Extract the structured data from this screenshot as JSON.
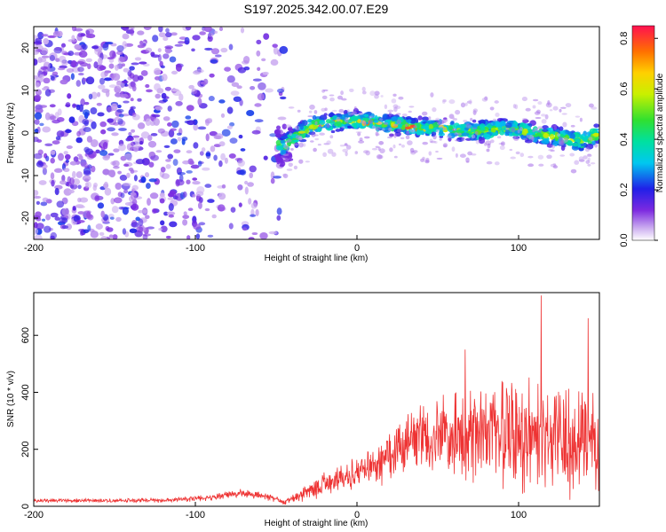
{
  "title": "S197.2025.342.00.07.E29",
  "chart_data": [
    {
      "type": "heatmap",
      "xlabel": "Height of straight line (km)",
      "ylabel": "Frequency (Hz)",
      "xlim": [
        -200,
        150
      ],
      "ylim": [
        -25,
        25
      ],
      "xticks": [
        -200,
        -100,
        0,
        100
      ],
      "yticks": [
        -20,
        -10,
        0,
        10,
        20
      ],
      "ridge": {
        "x": [
          -45,
          -35,
          -25,
          -15,
          0,
          10,
          20,
          35,
          50,
          65,
          80,
          95,
          110,
          125,
          140,
          150
        ],
        "frequency": [
          -3,
          0,
          2,
          2.5,
          3,
          2.5,
          2,
          1.5,
          1,
          0.5,
          0.5,
          1,
          0,
          -1,
          -2,
          0
        ]
      },
      "colorbar": {
        "label": "Normalized spectral amplitude",
        "range": [
          0,
          0.85
        ],
        "ticks": [
          0.0,
          0.2,
          0.4,
          0.6,
          0.8
        ],
        "tick_labels": [
          "0.0",
          "0.2",
          "0.4",
          "0.6",
          "0.8"
        ]
      }
    },
    {
      "type": "line",
      "xlabel": "Height of straight line (km)",
      "ylabel": "SNR (10 * v/v)",
      "xlim": [
        -200,
        150
      ],
      "ylim": [
        0,
        750
      ],
      "xticks": [
        -200,
        -100,
        0,
        100
      ],
      "yticks": [
        0,
        200,
        400,
        600
      ],
      "series": [
        {
          "name": "SNR",
          "color": "#ee3333",
          "envelope": {
            "x": [
              -200,
              -150,
              -120,
              -90,
              -75,
              -60,
              -45,
              -35,
              -20,
              -10,
              0,
              10,
              20,
              30,
              50,
              70,
              90,
              110,
              130,
              150
            ],
            "mean": [
              20,
              20,
              22,
              30,
              45,
              40,
              15,
              40,
              75,
              95,
              110,
              140,
              180,
              210,
              240,
              250,
              255,
              250,
              245,
              240
            ],
            "amp": [
              8,
              8,
              10,
              12,
              20,
              18,
              10,
              30,
              50,
              55,
              70,
              90,
              110,
              130,
              170,
              200,
              220,
              230,
              230,
              220
            ]
          },
          "peaks": [
            {
              "x": 114,
              "y": 740
            },
            {
              "x": 143,
              "y": 660
            },
            {
              "x": 67,
              "y": 550
            }
          ]
        }
      ]
    }
  ]
}
